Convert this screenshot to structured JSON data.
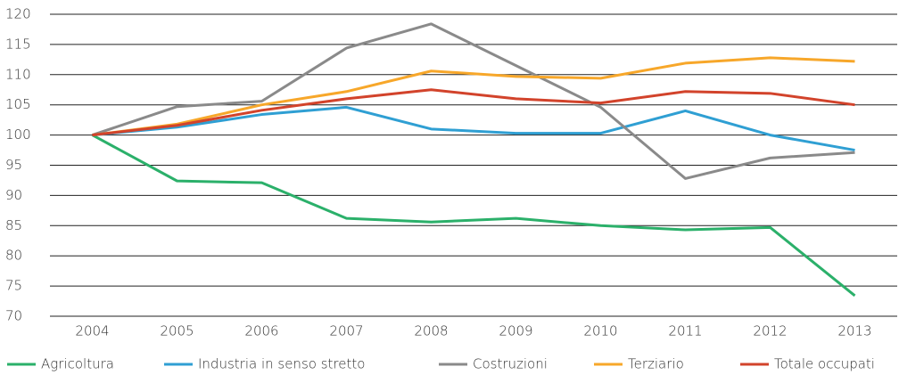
{
  "chart_data": {
    "type": "line",
    "categories": [
      "2004",
      "2005",
      "2006",
      "2007",
      "2008",
      "2009",
      "2010",
      "2011",
      "2012",
      "2013"
    ],
    "series": [
      {
        "name": "Agricoltura",
        "color": "#2bb06a",
        "values": [
          100,
          92.4,
          92.1,
          86.2,
          85.6,
          86.2,
          85,
          84.3,
          84.7,
          73.4
        ]
      },
      {
        "name": "Industria in senso stretto",
        "color": "#2f9fd3",
        "values": [
          100,
          101.3,
          103.4,
          104.6,
          101,
          100.3,
          100.3,
          104,
          100,
          97.5
        ]
      },
      {
        "name": "Costruzioni",
        "color": "#8a8a8a",
        "values": [
          100,
          104.7,
          105.6,
          114.4,
          118.4,
          111.5,
          104.6,
          92.8,
          96.2,
          97.1
        ]
      },
      {
        "name": "Terziario",
        "color": "#f7a72a",
        "values": [
          100,
          101.8,
          105,
          107.2,
          110.6,
          109.7,
          109.4,
          111.9,
          112.8,
          112.2
        ]
      },
      {
        "name": "Totale occupati",
        "color": "#d2432b",
        "values": [
          100,
          101.6,
          104.1,
          106,
          107.5,
          106,
          105.3,
          107.2,
          106.9,
          105
        ]
      }
    ],
    "ylim": [
      70,
      120
    ],
    "yticks": [
      70,
      75,
      80,
      85,
      90,
      95,
      100,
      105,
      110,
      115,
      120
    ],
    "grid": true,
    "legend": "bottom"
  }
}
